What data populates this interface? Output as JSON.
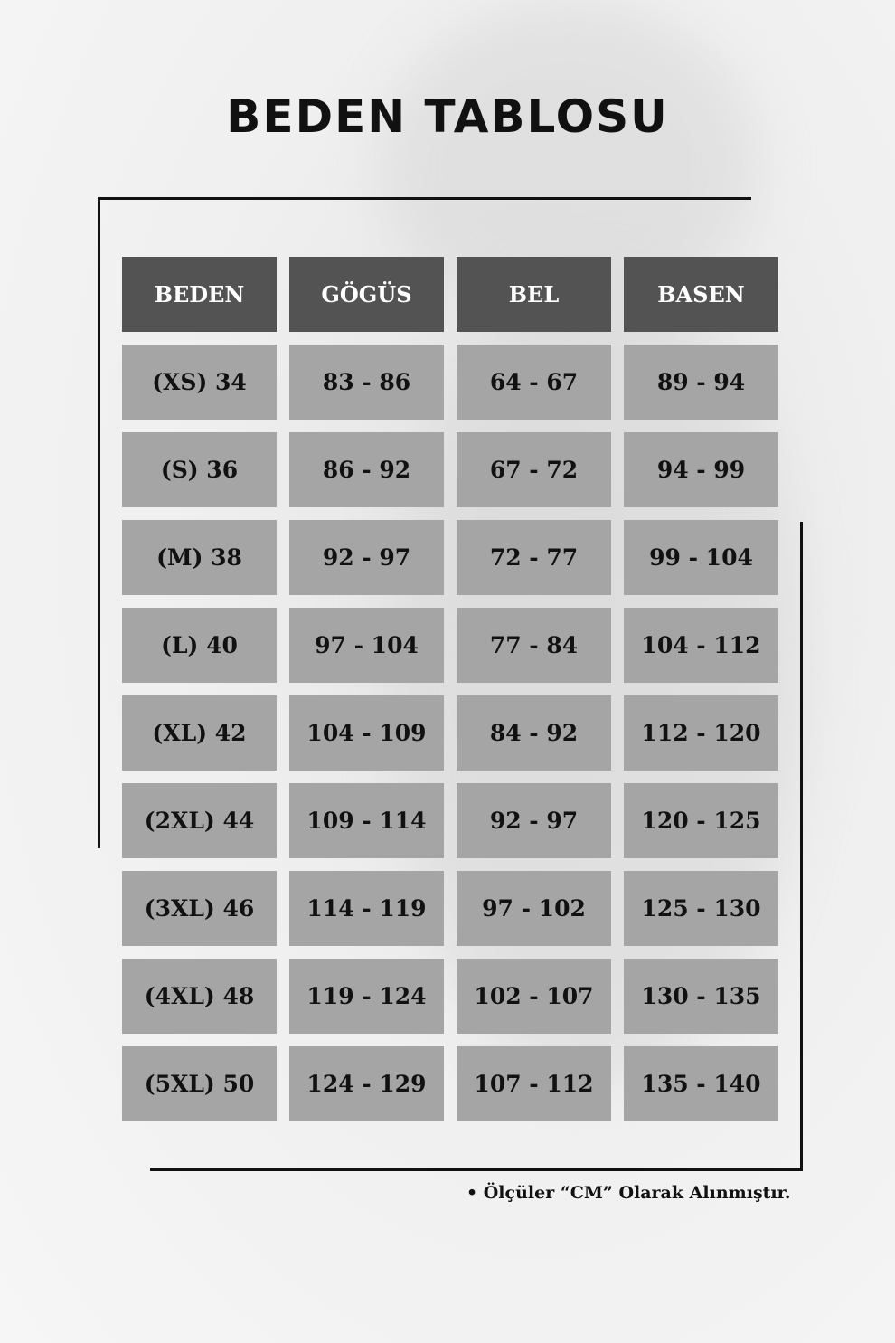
{
  "title": "BEDEN TABLOSU",
  "table": {
    "headers": [
      "BEDEN",
      "GÖGÜS",
      "BEL",
      "BASEN"
    ],
    "rows": [
      [
        "(XS) 34",
        "83 - 86",
        "64 - 67",
        "89 - 94"
      ],
      [
        "(S) 36",
        "86 - 92",
        "67 - 72",
        "94 - 99"
      ],
      [
        "(M) 38",
        "92 - 97",
        "72 - 77",
        "99 - 104"
      ],
      [
        "(L) 40",
        "97 - 104",
        "77 - 84",
        "104 - 112"
      ],
      [
        "(XL) 42",
        "104 - 109",
        "84 - 92",
        "112 - 120"
      ],
      [
        "(2XL) 44",
        "109 - 114",
        "92 - 97",
        "120 - 125"
      ],
      [
        "(3XL) 46",
        "114 - 119",
        "97 - 102",
        "125 - 130"
      ],
      [
        "(4XL) 48",
        "119 - 124",
        "102 - 107",
        "130 - 135"
      ],
      [
        "(5XL) 50",
        "124 - 129",
        "107 - 112",
        "135 - 140"
      ]
    ]
  },
  "note": "• Ölçüler “CM” Olarak Alınmıştır.",
  "colors": {
    "header_bg": "#535353",
    "cell_bg": "#a5a5a5",
    "text": "#111111"
  }
}
